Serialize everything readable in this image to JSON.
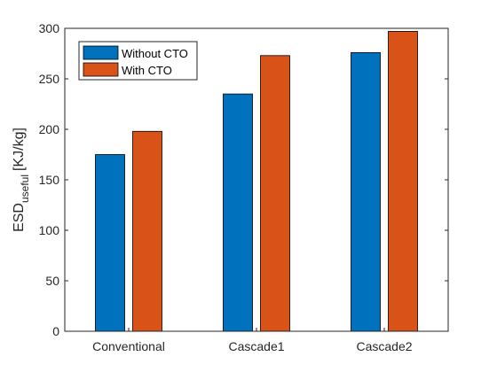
{
  "chart_data": {
    "type": "bar",
    "categories": [
      "Conventional",
      "Cascade1",
      "Cascade2"
    ],
    "series": [
      {
        "name": "Without CTO",
        "values": [
          175,
          235,
          276
        ],
        "color": "#0072BD"
      },
      {
        "name": "With CTO",
        "values": [
          198,
          273,
          297
        ],
        "color": "#D95319"
      }
    ],
    "ylabel": {
      "base": "ESD",
      "subscript": "useful",
      "unit": "[KJ/kg]"
    },
    "xlabel": "",
    "ylim": [
      0,
      300
    ],
    "yticks": [
      0,
      50,
      100,
      150,
      200,
      250,
      300
    ],
    "legend_position": "top-left",
    "grid": false,
    "box": true
  }
}
